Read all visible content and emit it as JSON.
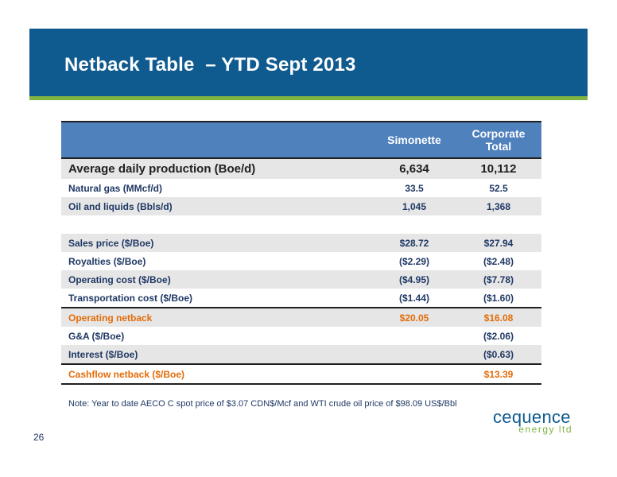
{
  "header": {
    "title": "Netback Table  – YTD Sept 2013"
  },
  "table": {
    "columns": [
      "",
      "Simonette",
      "Corporate Total"
    ],
    "col2_line1": "Corporate",
    "col2_line2": "Total",
    "rows": [
      {
        "label": "Average daily production (Boe/d)",
        "simonette": "6,634",
        "corporate": "10,112"
      },
      {
        "label": "Natural gas (MMcf/d)",
        "simonette": "33.5",
        "corporate": "52.5"
      },
      {
        "label": "Oil and liquids (Bbls/d)",
        "simonette": "1,045",
        "corporate": "1,368"
      },
      {
        "label": "",
        "simonette": "",
        "corporate": ""
      },
      {
        "label": "Sales price ($/Boe)",
        "simonette": "$28.72",
        "corporate": "$27.94"
      },
      {
        "label": "Royalties ($/Boe)",
        "simonette": "($2.29)",
        "corporate": "($2.48)"
      },
      {
        "label": "Operating cost ($/Boe)",
        "simonette": "($4.95)",
        "corporate": "($7.78)"
      },
      {
        "label": "Transportation cost ($/Boe)",
        "simonette": "($1.44)",
        "corporate": "($1.60)"
      },
      {
        "label": "Operating netback",
        "simonette": "$20.05",
        "corporate": "$16.08"
      },
      {
        "label": "G&A ($/Boe)",
        "simonette": "",
        "corporate": "($2.06)"
      },
      {
        "label": "Interest ($/Boe)",
        "simonette": "",
        "corporate": "($0.63)"
      },
      {
        "label": "Cashflow netback ($/Boe)",
        "simonette": "",
        "corporate": "$13.39"
      }
    ]
  },
  "note": "Note: Year to date AECO C spot price of $3.07 CDN$/Mcf and WTI crude oil price of $98.09 US$/Bbl",
  "page_number": "26",
  "logo": {
    "word": "cequence",
    "sub": "energy ltd"
  },
  "colors": {
    "title_bar": "#0f5a8f",
    "accent_green": "#7fb342",
    "header_blue": "#4f81bd",
    "highlight_orange": "#e36c09"
  }
}
